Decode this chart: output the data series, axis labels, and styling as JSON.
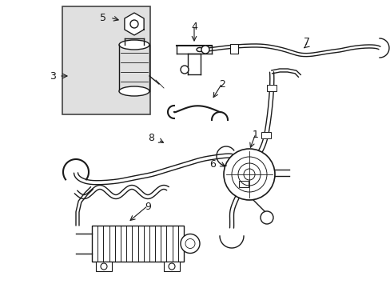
{
  "bg_color": "#ffffff",
  "line_color": "#1a1a1a",
  "box_bg": "#e0e0e0",
  "fig_width": 4.89,
  "fig_height": 3.6,
  "dpi": 100
}
